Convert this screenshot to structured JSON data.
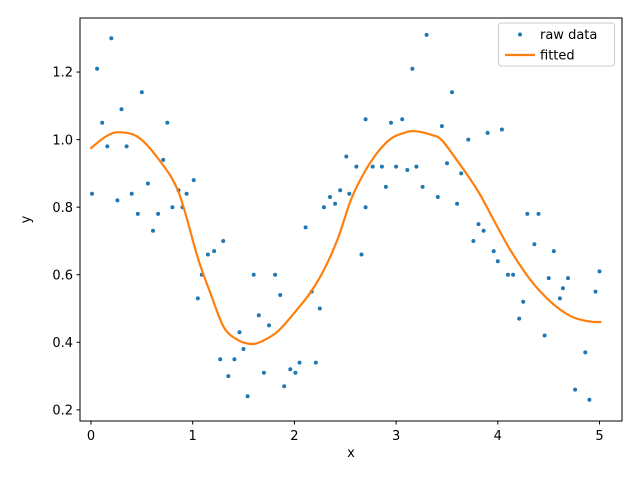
{
  "figure": {
    "background": "#ffffff",
    "frame_color": "#000000",
    "xlabel": "x",
    "ylabel": "y"
  },
  "chart_data": {
    "type": "scatter",
    "title": "",
    "xlabel": "x",
    "ylabel": "y",
    "xlim": [
      -0.108,
      5.221
    ],
    "ylim": [
      0.167,
      1.36
    ],
    "x_ticks": [
      "0",
      "1",
      "2",
      "3",
      "4",
      "5"
    ],
    "x_tick_values": [
      0,
      1,
      2,
      3,
      4,
      5
    ],
    "y_ticks": [
      "0.2",
      "0.4",
      "0.6",
      "0.8",
      "1.0",
      "1.2"
    ],
    "y_tick_values": [
      0.2,
      0.4,
      0.6,
      0.8,
      1.0,
      1.2
    ],
    "grid": false,
    "legend_position": "upper right",
    "series": [
      {
        "name": "raw data",
        "type": "scatter",
        "color": "#1f77b4",
        "marker": "dot",
        "points": [
          [
            0.01,
            0.84
          ],
          [
            0.06,
            1.21
          ],
          [
            0.11,
            1.05
          ],
          [
            0.16,
            0.98
          ],
          [
            0.2,
            1.3
          ],
          [
            0.26,
            0.82
          ],
          [
            0.3,
            1.09
          ],
          [
            0.35,
            0.98
          ],
          [
            0.4,
            0.84
          ],
          [
            0.46,
            0.78
          ],
          [
            0.5,
            1.14
          ],
          [
            0.56,
            0.87
          ],
          [
            0.61,
            0.73
          ],
          [
            0.66,
            0.78
          ],
          [
            0.71,
            0.94
          ],
          [
            0.75,
            1.05
          ],
          [
            0.8,
            0.8
          ],
          [
            0.86,
            0.85
          ],
          [
            0.9,
            0.8
          ],
          [
            0.94,
            0.84
          ],
          [
            1.01,
            0.88
          ],
          [
            1.05,
            0.53
          ],
          [
            1.09,
            0.6
          ],
          [
            1.15,
            0.66
          ],
          [
            1.21,
            0.67
          ],
          [
            1.27,
            0.35
          ],
          [
            1.3,
            0.7
          ],
          [
            1.35,
            0.3
          ],
          [
            1.41,
            0.35
          ],
          [
            1.46,
            0.43
          ],
          [
            1.5,
            0.38
          ],
          [
            1.54,
            0.24
          ],
          [
            1.6,
            0.6
          ],
          [
            1.65,
            0.48
          ],
          [
            1.7,
            0.31
          ],
          [
            1.75,
            0.45
          ],
          [
            1.81,
            0.6
          ],
          [
            1.86,
            0.54
          ],
          [
            1.9,
            0.27
          ],
          [
            1.96,
            0.32
          ],
          [
            2.01,
            0.31
          ],
          [
            2.05,
            0.34
          ],
          [
            2.11,
            0.74
          ],
          [
            2.17,
            0.55
          ],
          [
            2.21,
            0.34
          ],
          [
            2.25,
            0.5
          ],
          [
            2.29,
            0.8
          ],
          [
            2.35,
            0.83
          ],
          [
            2.4,
            0.81
          ],
          [
            2.45,
            0.85
          ],
          [
            2.51,
            0.95
          ],
          [
            2.54,
            0.84
          ],
          [
            2.61,
            0.92
          ],
          [
            2.66,
            0.66
          ],
          [
            2.7,
            0.8
          ],
          [
            2.7,
            1.06
          ],
          [
            2.77,
            0.92
          ],
          [
            2.86,
            0.92
          ],
          [
            2.9,
            0.86
          ],
          [
            2.95,
            1.05
          ],
          [
            3.0,
            0.92
          ],
          [
            3.06,
            1.06
          ],
          [
            3.11,
            0.91
          ],
          [
            3.16,
            1.21
          ],
          [
            3.2,
            0.92
          ],
          [
            3.26,
            0.86
          ],
          [
            3.3,
            1.31
          ],
          [
            3.41,
            0.83
          ],
          [
            3.45,
            1.04
          ],
          [
            3.5,
            0.93
          ],
          [
            3.55,
            1.14
          ],
          [
            3.6,
            0.81
          ],
          [
            3.64,
            0.9
          ],
          [
            3.71,
            1.0
          ],
          [
            3.76,
            0.7
          ],
          [
            3.81,
            0.75
          ],
          [
            3.86,
            0.73
          ],
          [
            3.9,
            1.02
          ],
          [
            3.96,
            0.67
          ],
          [
            4.0,
            0.64
          ],
          [
            4.04,
            1.03
          ],
          [
            4.1,
            0.6
          ],
          [
            4.15,
            0.6
          ],
          [
            4.21,
            0.47
          ],
          [
            4.25,
            0.52
          ],
          [
            4.29,
            0.78
          ],
          [
            4.36,
            0.69
          ],
          [
            4.4,
            0.78
          ],
          [
            4.46,
            0.42
          ],
          [
            4.5,
            0.59
          ],
          [
            4.55,
            0.67
          ],
          [
            4.61,
            0.53
          ],
          [
            4.64,
            0.56
          ],
          [
            4.69,
            0.59
          ],
          [
            4.76,
            0.26
          ],
          [
            4.86,
            0.37
          ],
          [
            4.9,
            0.23
          ],
          [
            4.96,
            0.55
          ],
          [
            5.0,
            0.61
          ]
        ]
      },
      {
        "name": "fitted",
        "type": "line",
        "color": "#ff7f0e",
        "points": [
          [
            0.0,
            0.975
          ],
          [
            0.14,
            1.008
          ],
          [
            0.27,
            1.022
          ],
          [
            0.46,
            1.008
          ],
          [
            0.66,
            0.944
          ],
          [
            0.86,
            0.845
          ],
          [
            1.05,
            0.65
          ],
          [
            1.18,
            0.541
          ],
          [
            1.31,
            0.443
          ],
          [
            1.45,
            0.406
          ],
          [
            1.58,
            0.395
          ],
          [
            1.68,
            0.403
          ],
          [
            1.84,
            0.433
          ],
          [
            2.04,
            0.502
          ],
          [
            2.17,
            0.553
          ],
          [
            2.3,
            0.62
          ],
          [
            2.43,
            0.709
          ],
          [
            2.56,
            0.825
          ],
          [
            2.69,
            0.904
          ],
          [
            2.82,
            0.963
          ],
          [
            2.95,
            1.003
          ],
          [
            3.08,
            1.02
          ],
          [
            3.18,
            1.025
          ],
          [
            3.35,
            1.014
          ],
          [
            3.45,
            0.998
          ],
          [
            3.61,
            0.934
          ],
          [
            3.81,
            0.845
          ],
          [
            3.97,
            0.756
          ],
          [
            4.13,
            0.67
          ],
          [
            4.33,
            0.581
          ],
          [
            4.53,
            0.517
          ],
          [
            4.72,
            0.477
          ],
          [
            4.89,
            0.462
          ],
          [
            5.01,
            0.46
          ]
        ]
      }
    ]
  },
  "legend": {
    "entries": [
      {
        "label": "raw data",
        "swatch": "dot",
        "color": "#1f77b4"
      },
      {
        "label": "fitted",
        "swatch": "line",
        "color": "#ff7f0e"
      }
    ]
  }
}
